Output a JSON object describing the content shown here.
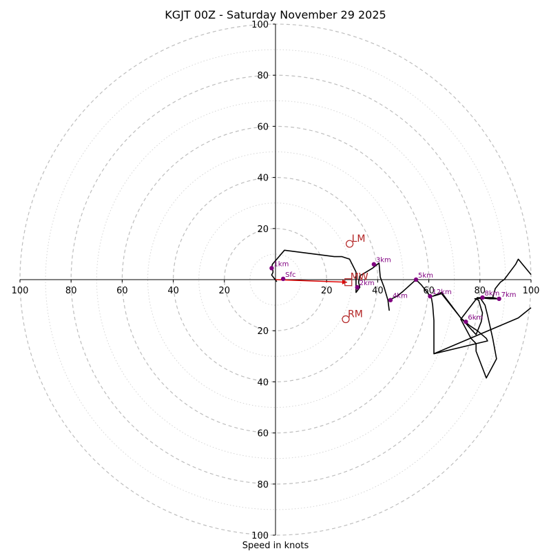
{
  "chart_data": {
    "type": "hodograph",
    "title": "KGJT 00Z - Saturday November 29 2025",
    "xlabel": "Speed in knots",
    "xlim": [
      -100,
      100
    ],
    "ylim": [
      -100,
      100
    ],
    "ring_step": 20,
    "minor_ring_step": 10,
    "x_tick_labels": [
      "100",
      "80",
      "60",
      "40",
      "20",
      "20",
      "40",
      "60",
      "80",
      "100"
    ],
    "x_tick_values": [
      -100,
      -80,
      -60,
      -40,
      -20,
      20,
      40,
      60,
      80,
      100
    ],
    "y_tick_labels": [
      "100",
      "80",
      "60",
      "40",
      "20",
      "20",
      "40",
      "60",
      "80",
      "100"
    ],
    "y_tick_values": [
      100,
      80,
      60,
      40,
      20,
      -20,
      -40,
      -60,
      -80,
      -100
    ],
    "trace_color": "#000000",
    "trace": [
      [
        0.5,
        -0.8
      ],
      [
        -1.5,
        1.8
      ],
      [
        -1.0,
        2.8
      ],
      [
        -1.0,
        3.5
      ],
      [
        -1.5,
        4.5
      ],
      [
        -1.2,
        6.0
      ],
      [
        3.5,
        11.5
      ],
      [
        23.0,
        9.0
      ],
      [
        26.0,
        9.0
      ],
      [
        29.0,
        8.0
      ],
      [
        31.5,
        3.0
      ],
      [
        31.5,
        0.0
      ],
      [
        31.5,
        -3.0
      ],
      [
        31.5,
        -5.0
      ],
      [
        33.0,
        -3.0
      ],
      [
        32.5,
        -1.0
      ],
      [
        33.0,
        1.5
      ],
      [
        35.5,
        3.0
      ],
      [
        38.0,
        4.5
      ],
      [
        40.5,
        6.5
      ],
      [
        41.0,
        1.0
      ],
      [
        42.5,
        -3.0
      ],
      [
        44.0,
        -8.0
      ],
      [
        44.5,
        -12.0
      ],
      [
        44.0,
        -8.0
      ],
      [
        45.5,
        -7.5
      ],
      [
        47.5,
        -6.5
      ],
      [
        50.0,
        -4.5
      ],
      [
        55.0,
        0.0
      ],
      [
        57.0,
        -2.0
      ],
      [
        59.0,
        -4.5
      ],
      [
        61.0,
        -7.0
      ],
      [
        61.5,
        -10.0
      ],
      [
        62.0,
        -16.0
      ],
      [
        62.0,
        -29.0
      ],
      [
        83.0,
        -24.0
      ],
      [
        82.5,
        -23.0
      ],
      [
        79.0,
        -20.0
      ],
      [
        76.0,
        -18.0
      ],
      [
        72.5,
        -15.0
      ],
      [
        65.0,
        -5.0
      ],
      [
        61.5,
        -6.5
      ],
      [
        65.0,
        -5.5
      ],
      [
        72.5,
        -15.0
      ],
      [
        78.5,
        -21.5
      ],
      [
        80.5,
        -16.5
      ],
      [
        81.0,
        -13.0
      ],
      [
        80.5,
        -11.5
      ],
      [
        79.5,
        -8.0
      ],
      [
        78.0,
        -7.5
      ],
      [
        83.0,
        -7.0
      ],
      [
        87.0,
        -7.5
      ],
      [
        84.5,
        -7.0
      ],
      [
        80.0,
        -7.0
      ],
      [
        82.0,
        -10.0
      ],
      [
        83.0,
        -14.0
      ],
      [
        85.0,
        -23.0
      ],
      [
        86.5,
        -31.0
      ],
      [
        82.5,
        -38.5
      ],
      [
        78.5,
        -28.0
      ],
      [
        78.5,
        -25.0
      ],
      [
        76.5,
        -23.0
      ],
      [
        72.5,
        -15.5
      ],
      [
        79.0,
        -7.0
      ],
      [
        84.0,
        -7.5
      ],
      [
        87.0,
        -7.5
      ],
      [
        85.0,
        -7.0
      ],
      [
        86.0,
        -3.5
      ],
      [
        88.0,
        -1.0
      ],
      [
        89.5,
        0.0
      ],
      [
        94.0,
        6.0
      ],
      [
        95.0,
        8.0
      ],
      [
        100,
        2.0
      ]
    ],
    "trace_tail": [
      [
        100,
        -11.0
      ],
      [
        95.0,
        -15.0
      ],
      [
        62.0,
        -29.0
      ]
    ],
    "height_points": [
      {
        "label": "Sfc",
        "u": 3.0,
        "v": 0.3
      },
      {
        "label": "1km",
        "u": -1.5,
        "v": 4.5
      },
      {
        "label": "2km",
        "u": 32.0,
        "v": -3.0
      },
      {
        "label": "3km",
        "u": 38.5,
        "v": 6.0
      },
      {
        "label": "4km",
        "u": 45.0,
        "v": -8.0
      },
      {
        "label": "5km",
        "u": 55.0,
        "v": 0.0
      },
      {
        "label": "6km",
        "u": 74.5,
        "v": -16.5
      },
      {
        "label": "7km",
        "u": 87.5,
        "v": -7.5
      },
      {
        "label": "8km",
        "u": 81.0,
        "v": -7.0
      },
      {
        "label": "12km",
        "u": 60.5,
        "v": -6.5
      }
    ],
    "height_color": "#800080",
    "markers": [
      {
        "label": "LM",
        "u": 29.0,
        "v": 14.0,
        "shape": "circle"
      },
      {
        "label": "RM",
        "u": 27.5,
        "v": -15.5,
        "shape": "circle"
      },
      {
        "label": "MW",
        "u": 28.5,
        "v": -1.0,
        "shape": "square"
      }
    ],
    "marker_color": "#b22222",
    "arrow": {
      "from": [
        0.0,
        0.0
      ],
      "to": [
        28.0,
        -1.0
      ],
      "color": "#dd0000"
    }
  }
}
